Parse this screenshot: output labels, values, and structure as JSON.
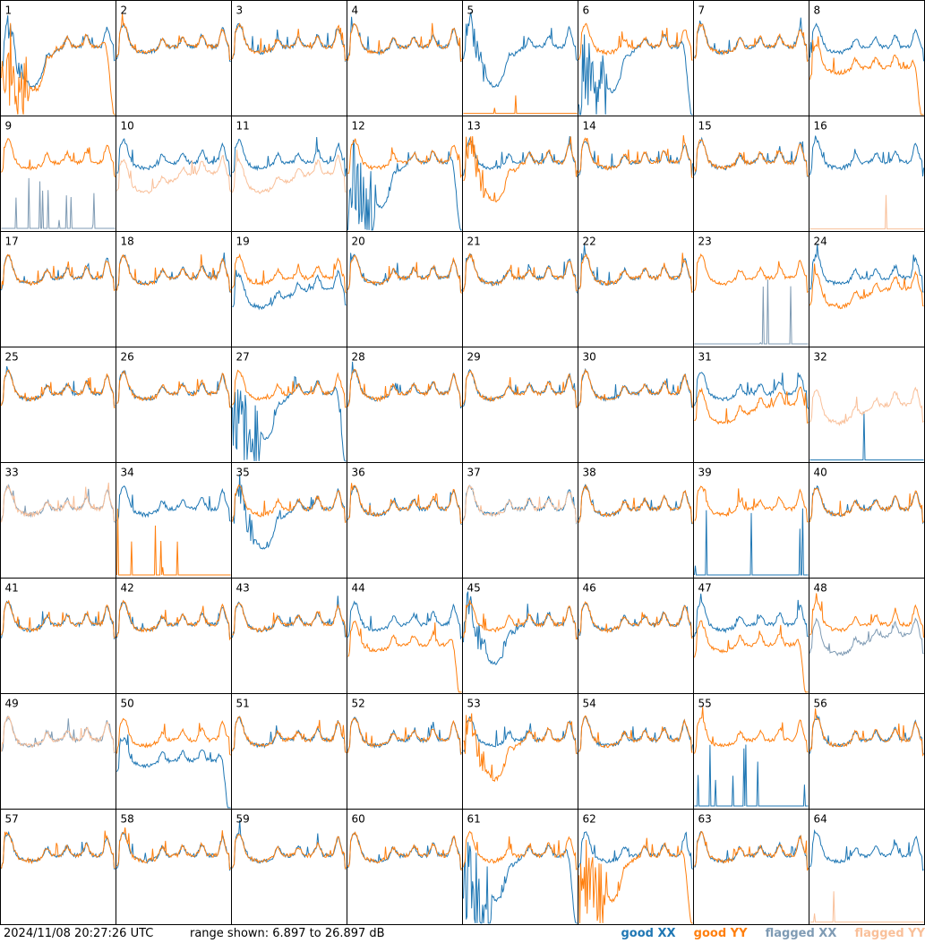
{
  "footer": {
    "timestamp": "2024/11/08 20:27:26 UTC",
    "range_text": "range shown: 6.897 to 26.897 dB"
  },
  "legend": [
    {
      "label": "good XX",
      "color": "#1f77b4"
    },
    {
      "label": "good YY",
      "color": "#ff7f0e"
    },
    {
      "label": "flagged XX",
      "color": "#7f9bb4"
    },
    {
      "label": "flagged YY",
      "color": "#f9c09a"
    }
  ],
  "chart_data": {
    "type": "line",
    "grid": {
      "rows": 8,
      "cols": 8
    },
    "ylim": [
      6.897,
      26.897
    ],
    "yunit": "dB",
    "panels": [
      {
        "id": "1",
        "xx": "good",
        "yy": "good",
        "xx_shape": "dip",
        "yy_shape": "noisy-drop"
      },
      {
        "id": "2",
        "xx": "good",
        "yy": "good"
      },
      {
        "id": "3",
        "xx": "good",
        "yy": "good"
      },
      {
        "id": "4",
        "xx": "good",
        "yy": "good"
      },
      {
        "id": "5",
        "xx": "good",
        "yy": "good",
        "xx_shape": "dip",
        "yy_shape": "floor"
      },
      {
        "id": "6",
        "xx": "good",
        "yy": "good",
        "xx_shape": "noisy-drop"
      },
      {
        "id": "7",
        "xx": "good",
        "yy": "good"
      },
      {
        "id": "8",
        "xx": "good",
        "yy": "good",
        "yy_shape": "low-drop"
      },
      {
        "id": "9",
        "xx": "flagged",
        "yy": "good",
        "xx_shape": "spiky"
      },
      {
        "id": "10",
        "xx": "good",
        "yy": "flagged",
        "yy_shape": "low"
      },
      {
        "id": "11",
        "xx": "good",
        "yy": "flagged",
        "yy_shape": "low"
      },
      {
        "id": "12",
        "xx": "good",
        "yy": "good",
        "xx_shape": "noisy-drop"
      },
      {
        "id": "13",
        "xx": "good",
        "yy": "good",
        "yy_shape": "dip"
      },
      {
        "id": "14",
        "xx": "good",
        "yy": "good"
      },
      {
        "id": "15",
        "xx": "good",
        "yy": "good"
      },
      {
        "id": "16",
        "xx": "good",
        "yy": "flagged",
        "yy_shape": "floor"
      },
      {
        "id": "17",
        "xx": "good",
        "yy": "good"
      },
      {
        "id": "18",
        "xx": "good",
        "yy": "good"
      },
      {
        "id": "19",
        "xx": "good",
        "yy": "good",
        "xx_shape": "low"
      },
      {
        "id": "20",
        "xx": "good",
        "yy": "good"
      },
      {
        "id": "21",
        "xx": "good",
        "yy": "good"
      },
      {
        "id": "22",
        "xx": "good",
        "yy": "good"
      },
      {
        "id": "23",
        "xx": "flagged",
        "yy": "good",
        "xx_shape": "spiky"
      },
      {
        "id": "24",
        "xx": "good",
        "yy": "good",
        "yy_shape": "low"
      },
      {
        "id": "25",
        "xx": "good",
        "yy": "good"
      },
      {
        "id": "26",
        "xx": "good",
        "yy": "good"
      },
      {
        "id": "27",
        "xx": "good",
        "yy": "good",
        "xx_shape": "noisy-drop"
      },
      {
        "id": "28",
        "xx": "good",
        "yy": "good"
      },
      {
        "id": "29",
        "xx": "good",
        "yy": "good"
      },
      {
        "id": "30",
        "xx": "good",
        "yy": "good"
      },
      {
        "id": "31",
        "xx": "good",
        "yy": "good",
        "yy_shape": "low"
      },
      {
        "id": "32",
        "xx": "good",
        "yy": "flagged",
        "xx_shape": "floor",
        "yy_shape": "low"
      },
      {
        "id": "33",
        "xx": "flagged",
        "yy": "flagged"
      },
      {
        "id": "34",
        "xx": "good",
        "yy": "good",
        "yy_shape": "spiky"
      },
      {
        "id": "35",
        "xx": "good",
        "yy": "good",
        "xx_shape": "dip"
      },
      {
        "id": "36",
        "xx": "good",
        "yy": "good"
      },
      {
        "id": "37",
        "xx": "good",
        "yy": "flagged"
      },
      {
        "id": "38",
        "xx": "good",
        "yy": "good"
      },
      {
        "id": "39",
        "xx": "good",
        "yy": "good",
        "xx_shape": "spiky"
      },
      {
        "id": "40",
        "xx": "good",
        "yy": "good"
      },
      {
        "id": "41",
        "xx": "good",
        "yy": "good"
      },
      {
        "id": "42",
        "xx": "good",
        "yy": "good"
      },
      {
        "id": "43",
        "xx": "good",
        "yy": "good"
      },
      {
        "id": "44",
        "xx": "good",
        "yy": "good",
        "yy_shape": "low-drop"
      },
      {
        "id": "45",
        "xx": "good",
        "yy": "good",
        "xx_shape": "dip"
      },
      {
        "id": "46",
        "xx": "good",
        "yy": "good"
      },
      {
        "id": "47",
        "xx": "good",
        "yy": "good",
        "yy_shape": "low-drop"
      },
      {
        "id": "48",
        "xx": "flagged",
        "yy": "good",
        "xx_shape": "low"
      },
      {
        "id": "49",
        "xx": "flagged",
        "yy": "flagged"
      },
      {
        "id": "50",
        "xx": "good",
        "yy": "good",
        "xx_shape": "low-drop"
      },
      {
        "id": "51",
        "xx": "good",
        "yy": "good"
      },
      {
        "id": "52",
        "xx": "good",
        "yy": "good"
      },
      {
        "id": "53",
        "xx": "good",
        "yy": "good",
        "yy_shape": "dip"
      },
      {
        "id": "54",
        "xx": "good",
        "yy": "good"
      },
      {
        "id": "55",
        "xx": "good",
        "yy": "good",
        "xx_shape": "spiky"
      },
      {
        "id": "56",
        "xx": "good",
        "yy": "good"
      },
      {
        "id": "57",
        "xx": "good",
        "yy": "good"
      },
      {
        "id": "58",
        "xx": "good",
        "yy": "good"
      },
      {
        "id": "59",
        "xx": "good",
        "yy": "good"
      },
      {
        "id": "60",
        "xx": "good",
        "yy": "good"
      },
      {
        "id": "61",
        "xx": "good",
        "yy": "good",
        "xx_shape": "noisy-drop"
      },
      {
        "id": "62",
        "xx": "good",
        "yy": "good",
        "yy_shape": "noisy-drop"
      },
      {
        "id": "63",
        "xx": "good",
        "yy": "good"
      },
      {
        "id": "64",
        "xx": "good",
        "yy": "flagged",
        "yy_shape": "floor"
      }
    ]
  }
}
